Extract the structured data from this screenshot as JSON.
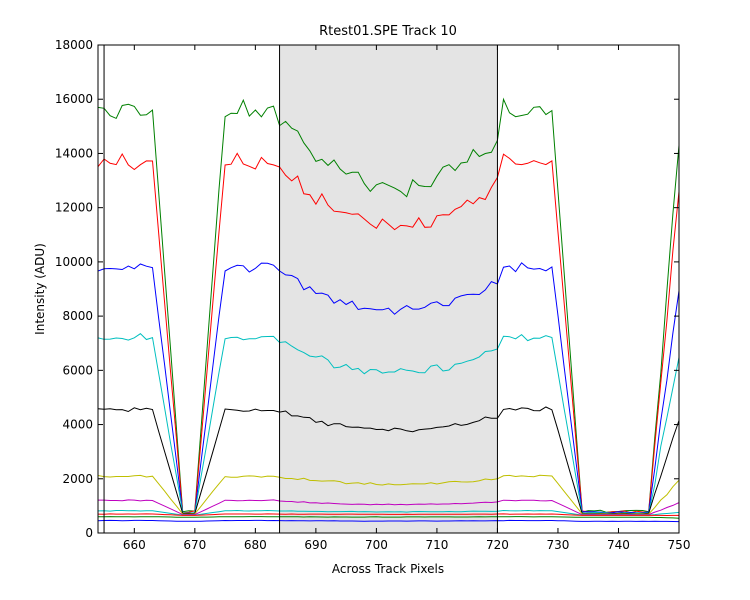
{
  "chart_data": {
    "type": "line",
    "title": "Rtest01.SPE    Track 10",
    "xlabel": "Across Track Pixels",
    "ylabel": "Intensity (ADU)",
    "xlim": [
      654,
      750
    ],
    "ylim": [
      0,
      18000
    ],
    "x_ticks": [
      660,
      670,
      680,
      690,
      700,
      710,
      720,
      730,
      740,
      750
    ],
    "y_ticks": [
      0,
      2000,
      4000,
      6000,
      8000,
      10000,
      12000,
      14000,
      16000,
      18000
    ],
    "grid": false,
    "legend": false,
    "shaded_region": {
      "x": [
        684,
        720
      ],
      "color": "#e4e4e4"
    },
    "vertical_lines": [
      655,
      684,
      720
    ],
    "series": [
      {
        "color": "#008000",
        "high": 15600,
        "center": 12700,
        "low": 800,
        "noise": 450,
        "ripple": 300
      },
      {
        "color": "#ff0000",
        "high": 13700,
        "center": 11300,
        "low": 780,
        "noise": 350,
        "ripple": 220
      },
      {
        "color": "#0000ff",
        "high": 9800,
        "center": 8200,
        "low": 760,
        "noise": 240,
        "ripple": 150
      },
      {
        "color": "#00bfbf",
        "high": 7200,
        "center": 5900,
        "low": 740,
        "noise": 200,
        "ripple": 120
      },
      {
        "color": "#000000",
        "high": 4550,
        "center": 3800,
        "low": 720,
        "noise": 120,
        "ripple": 60
      },
      {
        "color": "#bfbf00",
        "high": 2100,
        "center": 1800,
        "low": 700,
        "noise": 60,
        "ripple": 25
      },
      {
        "color": "#bf00bf",
        "high": 1200,
        "center": 1050,
        "low": 680,
        "noise": 30,
        "ripple": 10
      },
      {
        "color": "#00bfbf",
        "high": 820,
        "center": 780,
        "low": 660,
        "noise": 15,
        "ripple": 5
      },
      {
        "color": "#ff0000",
        "high": 700,
        "center": 690,
        "low": 650,
        "noise": 8,
        "ripple": 3
      },
      {
        "color": "#008000",
        "high": 600,
        "center": 590,
        "low": 580,
        "noise": 8,
        "ripple": 3
      },
      {
        "color": "#0000ff",
        "high": 460,
        "center": 440,
        "low": 430,
        "noise": 8,
        "ripple": 3
      }
    ]
  }
}
